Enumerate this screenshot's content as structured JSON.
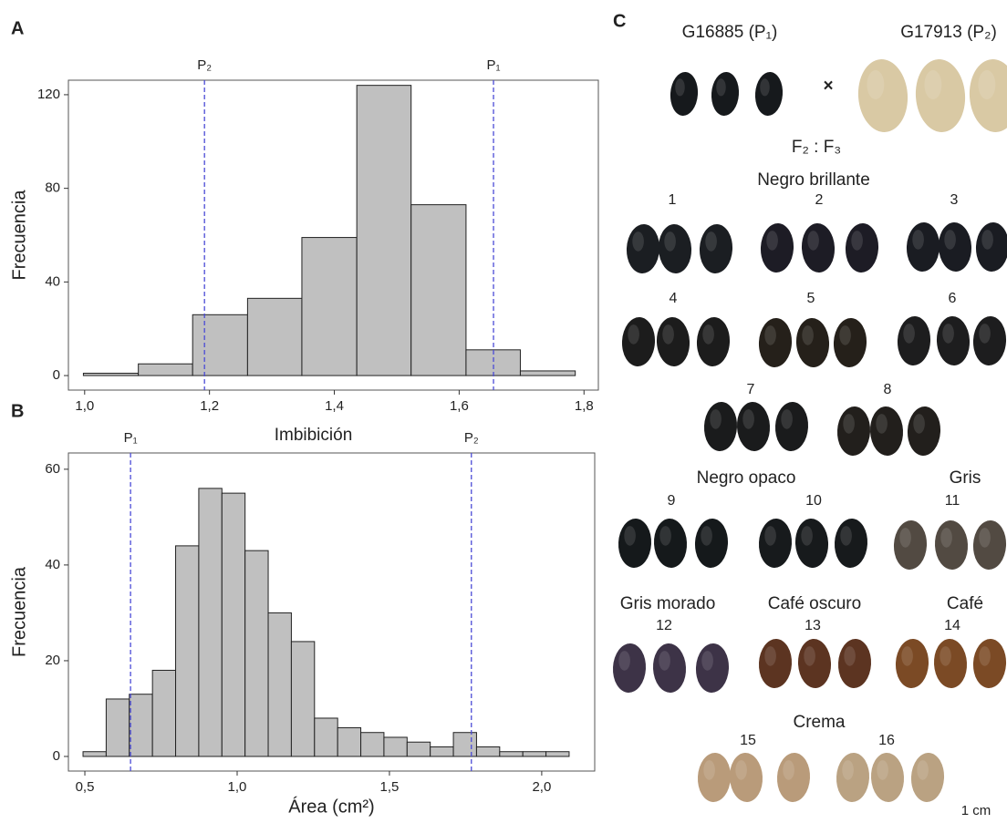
{
  "chart_data": [
    {
      "type": "histogram",
      "panel": "A",
      "bins": [
        0.998,
        1.086,
        1.173,
        1.261,
        1.348,
        1.436,
        1.523,
        1.611,
        1.698,
        1.786
      ],
      "values": [
        1,
        5,
        26,
        33,
        59,
        124,
        73,
        11,
        2
      ],
      "color": "#c0c0c0",
      "ylabel": "Frecuencia",
      "xlim": [
        0.974,
        1.823
      ],
      "ylim": [
        -6.2,
        126.2
      ],
      "xticks": [
        {
          "value": 1.0,
          "label": "1,0"
        },
        {
          "value": 1.2,
          "label": "1,2"
        },
        {
          "value": 1.4,
          "label": "1,4"
        },
        {
          "value": 1.6,
          "label": "1,6"
        },
        {
          "value": 1.8,
          "label": "1,8"
        }
      ],
      "yticks": [
        0,
        40,
        80,
        120
      ],
      "vline_color": "#4b4bd6",
      "vlines": [
        {
          "label": "P₂",
          "x": 1.192
        },
        {
          "label": "P₁",
          "x": 1.655
        }
      ]
    },
    {
      "type": "histogram",
      "panel": "B",
      "title": "Imbibición",
      "bins": [
        0.494,
        0.57,
        0.646,
        0.722,
        0.798,
        0.874,
        0.95,
        1.026,
        1.102,
        1.178,
        1.254,
        1.33,
        1.406,
        1.482,
        1.558,
        1.634,
        1.71,
        1.786,
        1.862,
        1.938,
        2.014,
        2.09
      ],
      "values": [
        1,
        12,
        13,
        18,
        44,
        56,
        55,
        43,
        30,
        24,
        8,
        6,
        5,
        4,
        3,
        2,
        5,
        2,
        1,
        1,
        1
      ],
      "color": "#c0c0c0",
      "ylabel": "Frecuencia",
      "xlabel": "Área (cm²)",
      "xlim": [
        0.446,
        2.174
      ],
      "ylim": [
        -3.05,
        63.4
      ],
      "xticks": [
        {
          "value": 0.5,
          "label": "0,5"
        },
        {
          "value": 1.0,
          "label": "1,0"
        },
        {
          "value": 1.5,
          "label": "1,5"
        },
        {
          "value": 2.0,
          "label": "2,0"
        }
      ],
      "yticks": [
        0,
        20,
        40,
        60
      ],
      "vline_color": "#4b4bd6",
      "vlines": [
        {
          "label": "P₁",
          "x": 0.65
        },
        {
          "label": "P₂",
          "x": 1.769
        }
      ]
    }
  ],
  "panel_c": {
    "letter": "C",
    "parent_1": "G16885 (P₁)",
    "parent_2": "G17913 (P₂)",
    "cross": "×",
    "generation": "F₂ : F₃",
    "groups": [
      {
        "name": "Negro brillante",
        "lines": [
          1,
          2,
          3,
          4,
          5,
          6,
          7,
          8
        ]
      },
      {
        "name": "Negro opaco",
        "lines": [
          9,
          10
        ]
      },
      {
        "name": "Gris",
        "lines": [
          11
        ]
      },
      {
        "name": "Gris morado",
        "lines": [
          12
        ]
      },
      {
        "name": "Café oscuro",
        "lines": [
          13
        ]
      },
      {
        "name": "Café",
        "lines": [
          14
        ]
      },
      {
        "name": "Crema",
        "lines": [
          15,
          16
        ]
      }
    ],
    "scale": "1 cm"
  }
}
